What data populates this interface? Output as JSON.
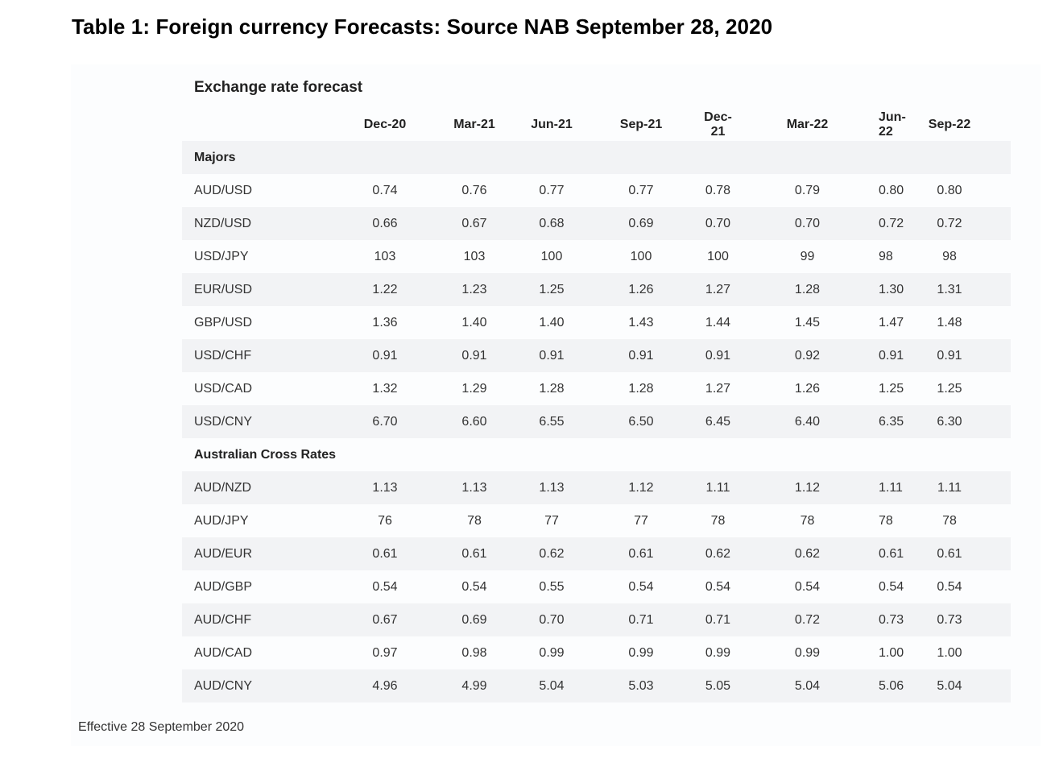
{
  "document": {
    "title": "Table 1: Foreign currency Forecasts: Source NAB September 28, 2020"
  },
  "table": {
    "heading": "Exchange rate forecast",
    "columns": [
      "Dec-20",
      "Mar-21",
      "Jun-21",
      "Sep-21",
      "Dec-21",
      "Mar-22",
      "Jun-22",
      "Sep-22"
    ],
    "sections": [
      {
        "name": "Majors",
        "rows": [
          {
            "pair": "AUD/USD",
            "values": [
              "0.74",
              "0.76",
              "0.77",
              "0.77",
              "0.78",
              "0.79",
              "0.80",
              "0.80"
            ]
          },
          {
            "pair": "NZD/USD",
            "values": [
              "0.66",
              "0.67",
              "0.68",
              "0.69",
              "0.70",
              "0.70",
              "0.72",
              "0.72"
            ]
          },
          {
            "pair": "USD/JPY",
            "values": [
              "103",
              "103",
              "100",
              "100",
              "100",
              "99",
              "98",
              "98"
            ]
          },
          {
            "pair": "EUR/USD",
            "values": [
              "1.22",
              "1.23",
              "1.25",
              "1.26",
              "1.27",
              "1.28",
              "1.30",
              "1.31"
            ]
          },
          {
            "pair": "GBP/USD",
            "values": [
              "1.36",
              "1.40",
              "1.40",
              "1.43",
              "1.44",
              "1.45",
              "1.47",
              "1.48"
            ]
          },
          {
            "pair": "USD/CHF",
            "values": [
              "0.91",
              "0.91",
              "0.91",
              "0.91",
              "0.91",
              "0.92",
              "0.91",
              "0.91"
            ]
          },
          {
            "pair": "USD/CAD",
            "values": [
              "1.32",
              "1.29",
              "1.28",
              "1.28",
              "1.27",
              "1.26",
              "1.25",
              "1.25"
            ]
          },
          {
            "pair": "USD/CNY",
            "values": [
              "6.70",
              "6.60",
              "6.55",
              "6.50",
              "6.45",
              "6.40",
              "6.35",
              "6.30"
            ]
          }
        ]
      },
      {
        "name": "Australian Cross Rates",
        "rows": [
          {
            "pair": "AUD/NZD",
            "values": [
              "1.13",
              "1.13",
              "1.13",
              "1.12",
              "1.11",
              "1.12",
              "1.11",
              "1.11"
            ]
          },
          {
            "pair": "AUD/JPY",
            "values": [
              "76",
              "78",
              "77",
              "77",
              "78",
              "78",
              "78",
              "78"
            ]
          },
          {
            "pair": "AUD/EUR",
            "values": [
              "0.61",
              "0.61",
              "0.62",
              "0.61",
              "0.62",
              "0.62",
              "0.61",
              "0.61"
            ]
          },
          {
            "pair": "AUD/GBP",
            "values": [
              "0.54",
              "0.54",
              "0.55",
              "0.54",
              "0.54",
              "0.54",
              "0.54",
              "0.54"
            ]
          },
          {
            "pair": "AUD/CHF",
            "values": [
              "0.67",
              "0.69",
              "0.70",
              "0.71",
              "0.71",
              "0.72",
              "0.73",
              "0.73"
            ]
          },
          {
            "pair": "AUD/CAD",
            "values": [
              "0.97",
              "0.98",
              "0.99",
              "0.99",
              "0.99",
              "0.99",
              "1.00",
              "1.00"
            ]
          },
          {
            "pair": "AUD/CNY",
            "values": [
              "4.96",
              "4.99",
              "5.04",
              "5.03",
              "5.05",
              "5.04",
              "5.06",
              "5.04"
            ]
          }
        ]
      }
    ]
  },
  "footnote": "Effective 28 September 2020"
}
